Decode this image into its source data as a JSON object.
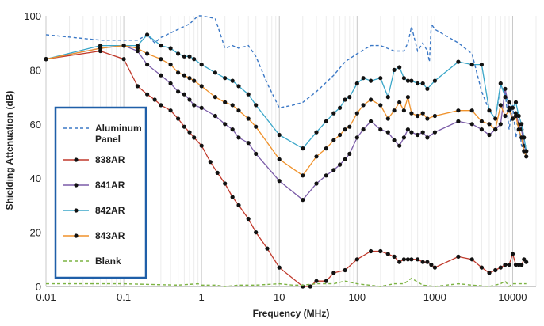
{
  "chart_data": {
    "type": "line",
    "xlabel": "Frequency (MHz)",
    "ylabel": "Shielding Attenuation (dB)",
    "xscale": "log",
    "xlim": [
      0.01,
      20000
    ],
    "ylim": [
      0,
      100
    ],
    "xticks": [
      0.01,
      0.1,
      1,
      10,
      100,
      1000,
      10000
    ],
    "xtick_labels": [
      "0.01",
      "0.1",
      "1",
      "10",
      "100",
      "1000",
      "10000"
    ],
    "yticks": [
      0,
      20,
      40,
      60,
      80,
      100
    ],
    "ytick_labels": [
      "0",
      "20",
      "40",
      "60",
      "80",
      "100"
    ],
    "grid": "vertical",
    "legend_position": "left",
    "series": [
      {
        "name": "Aluminum Panel",
        "color": "#3b78c6",
        "style": "dashed",
        "markers": false,
        "x": [
          0.01,
          0.05,
          0.1,
          0.15,
          0.2,
          0.25,
          0.3,
          0.5,
          0.7,
          0.9,
          1.0,
          1.5,
          2.0,
          2.5,
          3.0,
          4.0,
          5.0,
          7.0,
          10,
          15,
          20,
          30,
          50,
          70,
          100,
          150,
          200,
          300,
          400,
          450,
          500,
          600,
          700,
          800,
          850,
          900,
          1000,
          2000,
          3000,
          4000,
          5000,
          6000,
          7000,
          8000,
          9000,
          10000,
          11000,
          12000,
          13000,
          15000
        ],
        "y": [
          93,
          91,
          91,
          91,
          93,
          90,
          92,
          95,
          97,
          100,
          100,
          99,
          88,
          89,
          88,
          89,
          85,
          75,
          66,
          67,
          68,
          72,
          78,
          83,
          86,
          89,
          89,
          87,
          87,
          90,
          96,
          87,
          90,
          87,
          83,
          97,
          95,
          90,
          86,
          72,
          65,
          62,
          74,
          72,
          58,
          67,
          55,
          60,
          52,
          48
        ]
      },
      {
        "name": "838AR",
        "color": "#c0392b",
        "style": "solid",
        "markers": true,
        "x": [
          0.01,
          0.05,
          0.1,
          0.15,
          0.2,
          0.25,
          0.3,
          0.4,
          0.5,
          0.6,
          0.7,
          0.8,
          1.0,
          1.3,
          1.6,
          2.0,
          2.5,
          3.0,
          4.0,
          5.0,
          7.0,
          10,
          20,
          25,
          30,
          40,
          50,
          70,
          100,
          150,
          200,
          250,
          300,
          350,
          400,
          450,
          500,
          600,
          700,
          800,
          900,
          1000,
          2000,
          3000,
          4000,
          5000,
          6000,
          7000,
          8000,
          9000,
          10000,
          11000,
          12000,
          13000,
          14000,
          15000
        ],
        "y": [
          84,
          87,
          84,
          74,
          71,
          69,
          67,
          65,
          62,
          59,
          57,
          55,
          52,
          46,
          42,
          38,
          33,
          30,
          25,
          20,
          14,
          7,
          0,
          0,
          2,
          2,
          5,
          6,
          10,
          13,
          13,
          12,
          11,
          9,
          10,
          10,
          10,
          10,
          9,
          9,
          8,
          7,
          11,
          10,
          7,
          5,
          6,
          7,
          8,
          8,
          12,
          8,
          8,
          8,
          10,
          9
        ]
      },
      {
        "name": "841AR",
        "color": "#7b5ca8",
        "style": "solid",
        "markers": true,
        "x": [
          0.01,
          0.05,
          0.1,
          0.15,
          0.2,
          0.3,
          0.4,
          0.5,
          0.6,
          0.7,
          0.8,
          1.0,
          1.5,
          2.0,
          2.5,
          3.0,
          4.0,
          5.0,
          10,
          20,
          30,
          40,
          50,
          60,
          70,
          80,
          100,
          120,
          150,
          200,
          250,
          300,
          350,
          400,
          450,
          500,
          600,
          700,
          800,
          1000,
          2000,
          3000,
          4000,
          5000,
          6000,
          7000,
          8000,
          9000,
          10000,
          11000,
          12000,
          13000,
          14000,
          15000
        ],
        "y": [
          84,
          88,
          89,
          87,
          82,
          78,
          75,
          72,
          71,
          69,
          67,
          66,
          63,
          60,
          58,
          55,
          53,
          49,
          39,
          32,
          38,
          41,
          43,
          45,
          47,
          49,
          55,
          58,
          61,
          58,
          57,
          54,
          52,
          55,
          58,
          57,
          56,
          57,
          55,
          57,
          61,
          60,
          58,
          56,
          58,
          60,
          73,
          66,
          62,
          64,
          60,
          58,
          52,
          50
        ]
      },
      {
        "name": "842AR",
        "color": "#3aa6c8",
        "style": "solid",
        "markers": true,
        "x": [
          0.01,
          0.05,
          0.1,
          0.15,
          0.2,
          0.3,
          0.4,
          0.5,
          0.6,
          0.7,
          0.8,
          1.0,
          1.5,
          2.0,
          2.5,
          3.0,
          4.0,
          5.0,
          10,
          20,
          30,
          40,
          50,
          60,
          70,
          80,
          100,
          120,
          150,
          200,
          250,
          300,
          350,
          400,
          450,
          500,
          600,
          700,
          800,
          1000,
          2000,
          3000,
          4000,
          5000,
          6000,
          7000,
          8000,
          9000,
          10000,
          11000,
          12000,
          13000,
          14000,
          15000
        ],
        "y": [
          84,
          89,
          89,
          89,
          93,
          89,
          88,
          86,
          85,
          85,
          84,
          82,
          79,
          77,
          76,
          74,
          71,
          67,
          56,
          51,
          57,
          61,
          64,
          66,
          69,
          70,
          75,
          77,
          76,
          77,
          70,
          80,
          81,
          77,
          76,
          76,
          75,
          75,
          73,
          76,
          83,
          82,
          82,
          65,
          62,
          75,
          70,
          68,
          66,
          68,
          63,
          60,
          55,
          50
        ]
      },
      {
        "name": "843AR",
        "color": "#f0922b",
        "style": "solid",
        "markers": true,
        "x": [
          0.01,
          0.05,
          0.1,
          0.15,
          0.2,
          0.3,
          0.4,
          0.5,
          0.6,
          0.7,
          0.8,
          1.0,
          1.5,
          2.0,
          2.5,
          3.0,
          4.0,
          5.0,
          10,
          20,
          30,
          40,
          50,
          60,
          70,
          80,
          100,
          120,
          150,
          200,
          250,
          300,
          350,
          400,
          450,
          500,
          600,
          700,
          800,
          1000,
          2000,
          3000,
          4000,
          5000,
          6000,
          7000,
          8000,
          9000,
          10000,
          11000,
          12000,
          13000,
          14000,
          15000
        ],
        "y": [
          84,
          88,
          89,
          88,
          86,
          84,
          82,
          79,
          78,
          77,
          76,
          74,
          70,
          68,
          67,
          65,
          62,
          59,
          47,
          41,
          48,
          51,
          54,
          56,
          58,
          59,
          64,
          67,
          69,
          67,
          62,
          65,
          68,
          65,
          70,
          64,
          63,
          64,
          62,
          63,
          65,
          65,
          61,
          60,
          58,
          67,
          63,
          65,
          62,
          63,
          58,
          55,
          50,
          48
        ]
      },
      {
        "name": "Blank",
        "color": "#7cb342",
        "style": "dashed",
        "markers": false,
        "x": [
          0.01,
          0.1,
          0.5,
          0.9,
          1.0,
          1.5,
          2.0,
          3.0,
          5.0,
          10,
          15,
          20,
          30,
          50,
          70,
          100,
          200,
          300,
          400,
          500,
          700,
          1000,
          2000,
          3000,
          5000,
          7000,
          8000,
          9000,
          10000,
          12000,
          15000
        ],
        "y": [
          1,
          1,
          0.5,
          1,
          0.5,
          0.5,
          0,
          0.5,
          0.5,
          1,
          0.5,
          0.5,
          1,
          1,
          2,
          1,
          0,
          1,
          1,
          3,
          0.5,
          0,
          1,
          0.5,
          0,
          1,
          2,
          0,
          1,
          1,
          1
        ]
      }
    ]
  }
}
